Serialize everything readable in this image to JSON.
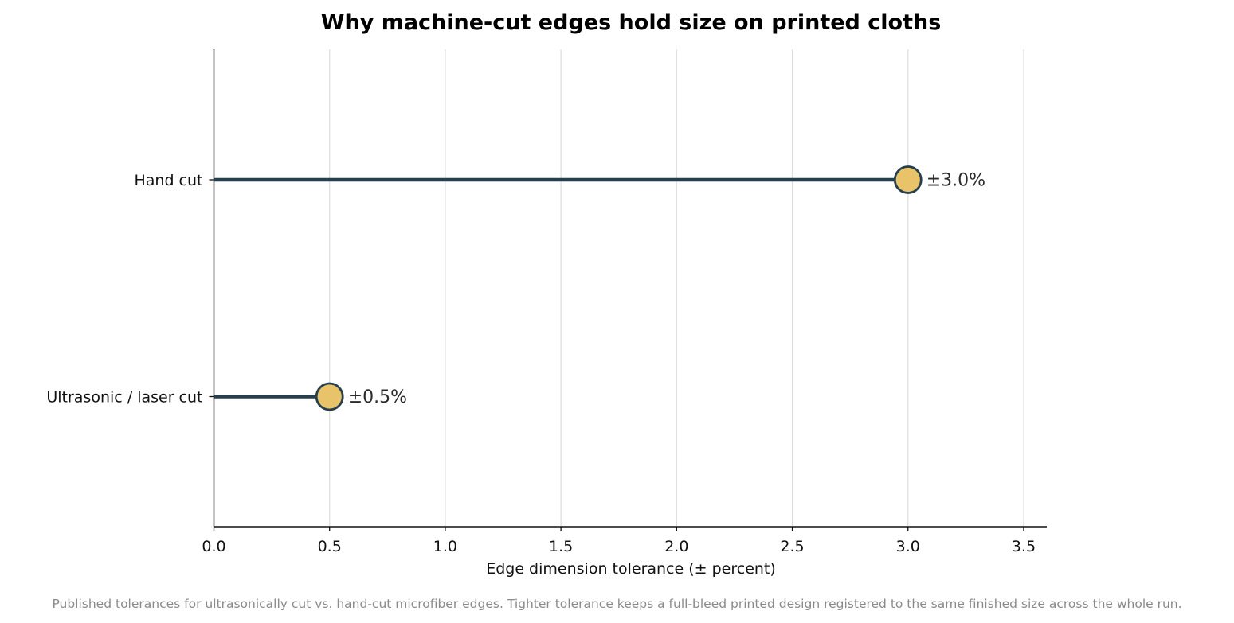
{
  "chart_data": {
    "type": "lollipop",
    "title": "Why machine-cut edges hold size on printed cloths",
    "xlabel": "Edge dimension tolerance (± percent)",
    "ylabel": "",
    "categories": [
      "Hand cut",
      "Ultrasonic / laser cut"
    ],
    "values": [
      3.0,
      0.5
    ],
    "data_labels": [
      "±3.0%",
      "±0.5%"
    ],
    "xlim": [
      0,
      3.6
    ],
    "xticks": [
      "0.0",
      "0.5",
      "1.0",
      "1.5",
      "2.0",
      "2.5",
      "3.0",
      "3.5"
    ],
    "grid": "vertical",
    "colors": {
      "stem": "#263f4d",
      "marker_fill": "#e8c36a",
      "marker_edge": "#263f4d",
      "grid": "#dddddd",
      "axis": "#111111"
    }
  },
  "caption": "Published tolerances for ultrasonically cut vs. hand-cut microfiber edges. Tighter tolerance keeps a full-bleed printed design registered to the same finished size across the whole run."
}
